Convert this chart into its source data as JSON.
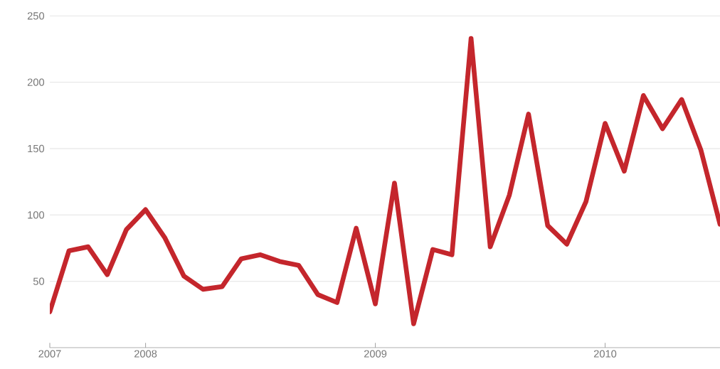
{
  "chart_data": {
    "type": "line",
    "color": "#c4262c",
    "x": [
      "2007-08",
      "2007-09",
      "2007-10",
      "2007-11",
      "2007-12",
      "2008-01",
      "2008-02",
      "2008-03",
      "2008-04",
      "2008-05",
      "2008-06",
      "2008-07",
      "2008-08",
      "2008-09",
      "2008-10",
      "2008-11",
      "2008-12",
      "2009-01",
      "2009-02",
      "2009-03",
      "2009-04",
      "2009-05",
      "2009-06",
      "2009-07",
      "2009-08",
      "2009-09",
      "2009-10",
      "2009-11",
      "2009-12",
      "2010-01",
      "2010-02",
      "2010-03",
      "2010-04",
      "2010-05",
      "2010-06",
      "2010-07"
    ],
    "values": [
      27,
      73,
      76,
      55,
      89,
      104,
      83,
      54,
      44,
      46,
      67,
      70,
      65,
      62,
      40,
      34,
      90,
      33,
      124,
      18,
      74,
      70,
      233,
      76,
      115,
      176,
      92,
      78,
      110,
      169,
      133,
      190,
      165,
      187,
      149,
      93
    ],
    "xlim": [
      "2007-08",
      "2010-07"
    ],
    "xticks": [
      {
        "value": "2007-08",
        "label": "2007"
      },
      {
        "value": "2008-01",
        "label": "2008"
      },
      {
        "value": "2009-01",
        "label": "2009"
      },
      {
        "value": "2010-01",
        "label": "2010"
      }
    ],
    "ylim": [
      0,
      250
    ],
    "yticks": [
      50,
      100,
      150,
      200,
      250
    ],
    "grid": "y",
    "marker": "none",
    "line_style": "solid"
  }
}
